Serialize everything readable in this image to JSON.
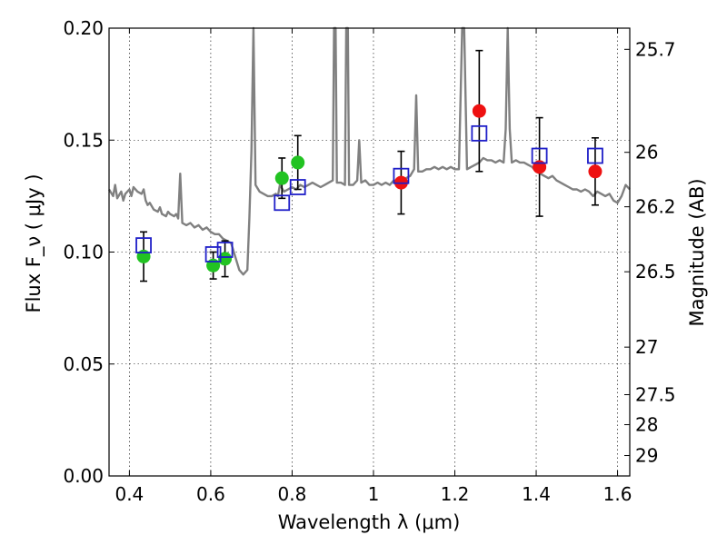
{
  "chart_data": {
    "type": "scatter",
    "xlabel": "Wavelength  λ (μm)",
    "ylabel_left": "Flux  F_ν  ( μJy )",
    "ylabel_right": "Magnitude (AB)",
    "xlim": [
      0.35,
      1.63
    ],
    "ylim": [
      0.0,
      0.2
    ],
    "grid": true,
    "x_ticks": [
      {
        "value": 0.4,
        "label": "0.4"
      },
      {
        "value": 0.6,
        "label": "0.6"
      },
      {
        "value": 0.8,
        "label": "0.8"
      },
      {
        "value": 1.0,
        "label": "1"
      },
      {
        "value": 1.2,
        "label": "1.2"
      },
      {
        "value": 1.4,
        "label": "1.4"
      },
      {
        "value": 1.6,
        "label": "1.6"
      }
    ],
    "y_ticks": [
      {
        "value": 0.0,
        "label": "0.00"
      },
      {
        "value": 0.05,
        "label": "0.05"
      },
      {
        "value": 0.1,
        "label": "0.10"
      },
      {
        "value": 0.15,
        "label": "0.15"
      },
      {
        "value": 0.2,
        "label": "0.20"
      }
    ],
    "magnitude_ticks": [
      {
        "mag": 25.7,
        "label": "25.7"
      },
      {
        "mag": 26.0,
        "label": "26"
      },
      {
        "mag": 26.2,
        "label": "26.2"
      },
      {
        "mag": 26.5,
        "label": "26.5"
      },
      {
        "mag": 27.0,
        "label": "27"
      },
      {
        "mag": 27.5,
        "label": "27.5"
      },
      {
        "mag": 28.0,
        "label": "28"
      },
      {
        "mag": 29.0,
        "label": "29"
      }
    ],
    "series": [
      {
        "marker": "circle",
        "color": "#22c322",
        "points": [
          {
            "x": 0.435,
            "y": 0.098,
            "err": 0.011
          },
          {
            "x": 0.606,
            "y": 0.094,
            "err": 0.006
          },
          {
            "x": 0.635,
            "y": 0.097,
            "err": 0.008
          },
          {
            "x": 0.775,
            "y": 0.133,
            "err": 0.009
          },
          {
            "x": 0.814,
            "y": 0.14,
            "err": 0.012
          }
        ]
      },
      {
        "marker": "circle",
        "color": "#ee1111",
        "points": [
          {
            "x": 1.068,
            "y": 0.131,
            "err": 0.014
          },
          {
            "x": 1.26,
            "y": 0.163,
            "err": 0.027
          },
          {
            "x": 1.408,
            "y": 0.138,
            "err": 0.022
          },
          {
            "x": 1.545,
            "y": 0.136,
            "err": 0.015
          }
        ]
      },
      {
        "marker": "open-square",
        "color": "#1f1fc8",
        "points": [
          {
            "x": 0.435,
            "y": 0.103
          },
          {
            "x": 0.606,
            "y": 0.099
          },
          {
            "x": 0.635,
            "y": 0.101
          },
          {
            "x": 0.775,
            "y": 0.122
          },
          {
            "x": 0.814,
            "y": 0.129
          },
          {
            "x": 1.068,
            "y": 0.134
          },
          {
            "x": 1.26,
            "y": 0.153
          },
          {
            "x": 1.408,
            "y": 0.143
          },
          {
            "x": 1.545,
            "y": 0.143
          }
        ]
      },
      {
        "marker": "line",
        "color": "#808080",
        "points": [
          [
            0.35,
            0.128
          ],
          [
            0.36,
            0.125
          ],
          [
            0.365,
            0.13
          ],
          [
            0.37,
            0.124
          ],
          [
            0.38,
            0.127
          ],
          [
            0.385,
            0.123
          ],
          [
            0.39,
            0.126
          ],
          [
            0.4,
            0.128
          ],
          [
            0.405,
            0.125
          ],
          [
            0.41,
            0.129
          ],
          [
            0.42,
            0.127
          ],
          [
            0.43,
            0.126
          ],
          [
            0.435,
            0.128
          ],
          [
            0.44,
            0.123
          ],
          [
            0.445,
            0.121
          ],
          [
            0.45,
            0.122
          ],
          [
            0.46,
            0.119
          ],
          [
            0.47,
            0.118
          ],
          [
            0.475,
            0.12
          ],
          [
            0.48,
            0.117
          ],
          [
            0.49,
            0.116
          ],
          [
            0.495,
            0.118
          ],
          [
            0.5,
            0.117
          ],
          [
            0.51,
            0.116
          ],
          [
            0.515,
            0.117
          ],
          [
            0.52,
            0.115
          ],
          [
            0.525,
            0.135
          ],
          [
            0.53,
            0.113
          ],
          [
            0.54,
            0.112
          ],
          [
            0.55,
            0.113
          ],
          [
            0.56,
            0.111
          ],
          [
            0.57,
            0.112
          ],
          [
            0.58,
            0.11
          ],
          [
            0.59,
            0.111
          ],
          [
            0.6,
            0.109
          ],
          [
            0.61,
            0.108
          ],
          [
            0.62,
            0.108
          ],
          [
            0.63,
            0.106
          ],
          [
            0.64,
            0.105
          ],
          [
            0.65,
            0.104
          ],
          [
            0.66,
            0.098
          ],
          [
            0.67,
            0.092
          ],
          [
            0.68,
            0.09
          ],
          [
            0.69,
            0.092
          ],
          [
            0.695,
            0.115
          ],
          [
            0.7,
            0.145
          ],
          [
            0.705,
            0.2
          ],
          [
            0.71,
            0.13
          ],
          [
            0.72,
            0.127
          ],
          [
            0.73,
            0.126
          ],
          [
            0.74,
            0.125
          ],
          [
            0.75,
            0.125
          ],
          [
            0.76,
            0.126
          ],
          [
            0.765,
            0.125
          ],
          [
            0.77,
            0.13
          ],
          [
            0.78,
            0.127
          ],
          [
            0.79,
            0.128
          ],
          [
            0.8,
            0.129
          ],
          [
            0.81,
            0.128
          ],
          [
            0.82,
            0.13
          ],
          [
            0.83,
            0.129
          ],
          [
            0.84,
            0.13
          ],
          [
            0.85,
            0.131
          ],
          [
            0.86,
            0.13
          ],
          [
            0.87,
            0.129
          ],
          [
            0.88,
            0.13
          ],
          [
            0.89,
            0.131
          ],
          [
            0.9,
            0.132
          ],
          [
            0.903,
            0.2
          ],
          [
            0.907,
            0.2
          ],
          [
            0.91,
            0.131
          ],
          [
            0.92,
            0.131
          ],
          [
            0.93,
            0.13
          ],
          [
            0.933,
            0.2
          ],
          [
            0.937,
            0.2
          ],
          [
            0.94,
            0.13
          ],
          [
            0.95,
            0.13
          ],
          [
            0.96,
            0.132
          ],
          [
            0.965,
            0.15
          ],
          [
            0.97,
            0.131
          ],
          [
            0.98,
            0.132
          ],
          [
            0.99,
            0.13
          ],
          [
            1.0,
            0.13
          ],
          [
            1.01,
            0.131
          ],
          [
            1.02,
            0.13
          ],
          [
            1.03,
            0.131
          ],
          [
            1.04,
            0.13
          ],
          [
            1.05,
            0.132
          ],
          [
            1.06,
            0.131
          ],
          [
            1.07,
            0.132
          ],
          [
            1.08,
            0.133
          ],
          [
            1.09,
            0.134
          ],
          [
            1.1,
            0.137
          ],
          [
            1.105,
            0.17
          ],
          [
            1.11,
            0.136
          ],
          [
            1.12,
            0.136
          ],
          [
            1.13,
            0.137
          ],
          [
            1.14,
            0.137
          ],
          [
            1.15,
            0.138
          ],
          [
            1.16,
            0.137
          ],
          [
            1.17,
            0.138
          ],
          [
            1.18,
            0.137
          ],
          [
            1.19,
            0.138
          ],
          [
            1.2,
            0.137
          ],
          [
            1.21,
            0.137
          ],
          [
            1.218,
            0.2
          ],
          [
            1.223,
            0.2
          ],
          [
            1.23,
            0.137
          ],
          [
            1.24,
            0.138
          ],
          [
            1.25,
            0.139
          ],
          [
            1.26,
            0.14
          ],
          [
            1.27,
            0.142
          ],
          [
            1.28,
            0.141
          ],
          [
            1.29,
            0.141
          ],
          [
            1.3,
            0.14
          ],
          [
            1.31,
            0.141
          ],
          [
            1.32,
            0.14
          ],
          [
            1.325,
            0.155
          ],
          [
            1.33,
            0.2
          ],
          [
            1.335,
            0.155
          ],
          [
            1.34,
            0.14
          ],
          [
            1.35,
            0.141
          ],
          [
            1.36,
            0.14
          ],
          [
            1.37,
            0.14
          ],
          [
            1.38,
            0.139
          ],
          [
            1.39,
            0.138
          ],
          [
            1.4,
            0.136
          ],
          [
            1.41,
            0.135
          ],
          [
            1.42,
            0.134
          ],
          [
            1.43,
            0.133
          ],
          [
            1.44,
            0.134
          ],
          [
            1.45,
            0.132
          ],
          [
            1.46,
            0.131
          ],
          [
            1.47,
            0.13
          ],
          [
            1.48,
            0.129
          ],
          [
            1.49,
            0.128
          ],
          [
            1.5,
            0.128
          ],
          [
            1.51,
            0.127
          ],
          [
            1.52,
            0.128
          ],
          [
            1.53,
            0.127
          ],
          [
            1.54,
            0.125
          ],
          [
            1.55,
            0.127
          ],
          [
            1.56,
            0.126
          ],
          [
            1.57,
            0.125
          ],
          [
            1.58,
            0.126
          ],
          [
            1.59,
            0.123
          ],
          [
            1.6,
            0.122
          ],
          [
            1.61,
            0.125
          ],
          [
            1.62,
            0.13
          ],
          [
            1.63,
            0.128
          ]
        ]
      }
    ]
  }
}
